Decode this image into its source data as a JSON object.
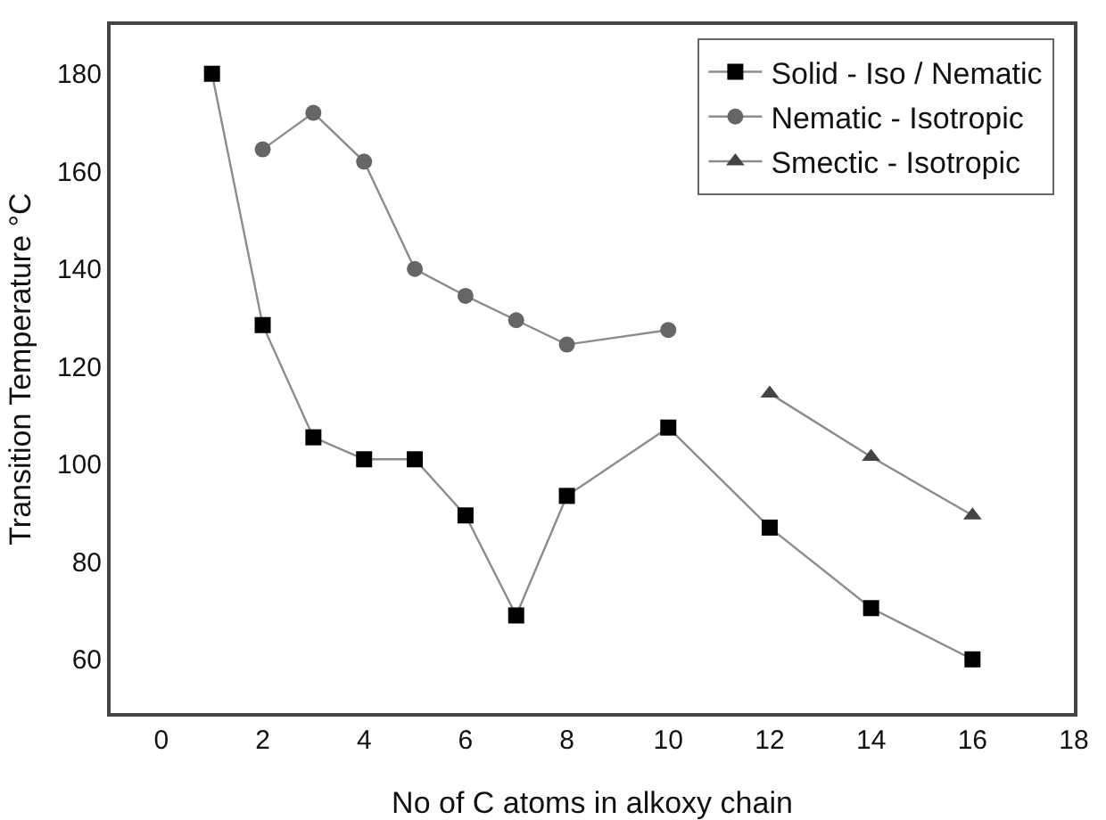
{
  "chart_data": {
    "type": "line",
    "xlabel": "No of C atoms in alkoxy chain",
    "ylabel": "Transition Temperature °C",
    "xlim": [
      -1,
      18
    ],
    "xticks": [
      0,
      2,
      4,
      6,
      8,
      10,
      12,
      14,
      16,
      18
    ],
    "ylim": [
      49,
      190
    ],
    "yticks": [
      60,
      80,
      100,
      120,
      140,
      160,
      180
    ],
    "grid": false,
    "legend": "top right",
    "series": [
      {
        "name": "Solid - Iso / Nematic",
        "color": "#000000",
        "marker": "square",
        "x": [
          1,
          2,
          3,
          4,
          5,
          6,
          7,
          8,
          10,
          12,
          14,
          16
        ],
        "values": [
          180,
          128.5,
          105.5,
          101,
          101,
          89.5,
          69,
          93.5,
          107.5,
          87,
          70.5,
          60
        ]
      },
      {
        "name": "Nematic - Isotropic",
        "color": "#666666",
        "marker": "circle",
        "x": [
          2,
          3,
          4,
          5,
          6,
          7,
          8,
          10
        ],
        "values": [
          164.5,
          172,
          162,
          140,
          134.5,
          129.5,
          124.5,
          127.5
        ]
      },
      {
        "name": "Smectic - Isotropic",
        "color": "#444444",
        "marker": "triangle",
        "x": [
          12,
          14,
          16
        ],
        "values": [
          114.5,
          101.5,
          89.5
        ]
      }
    ]
  }
}
